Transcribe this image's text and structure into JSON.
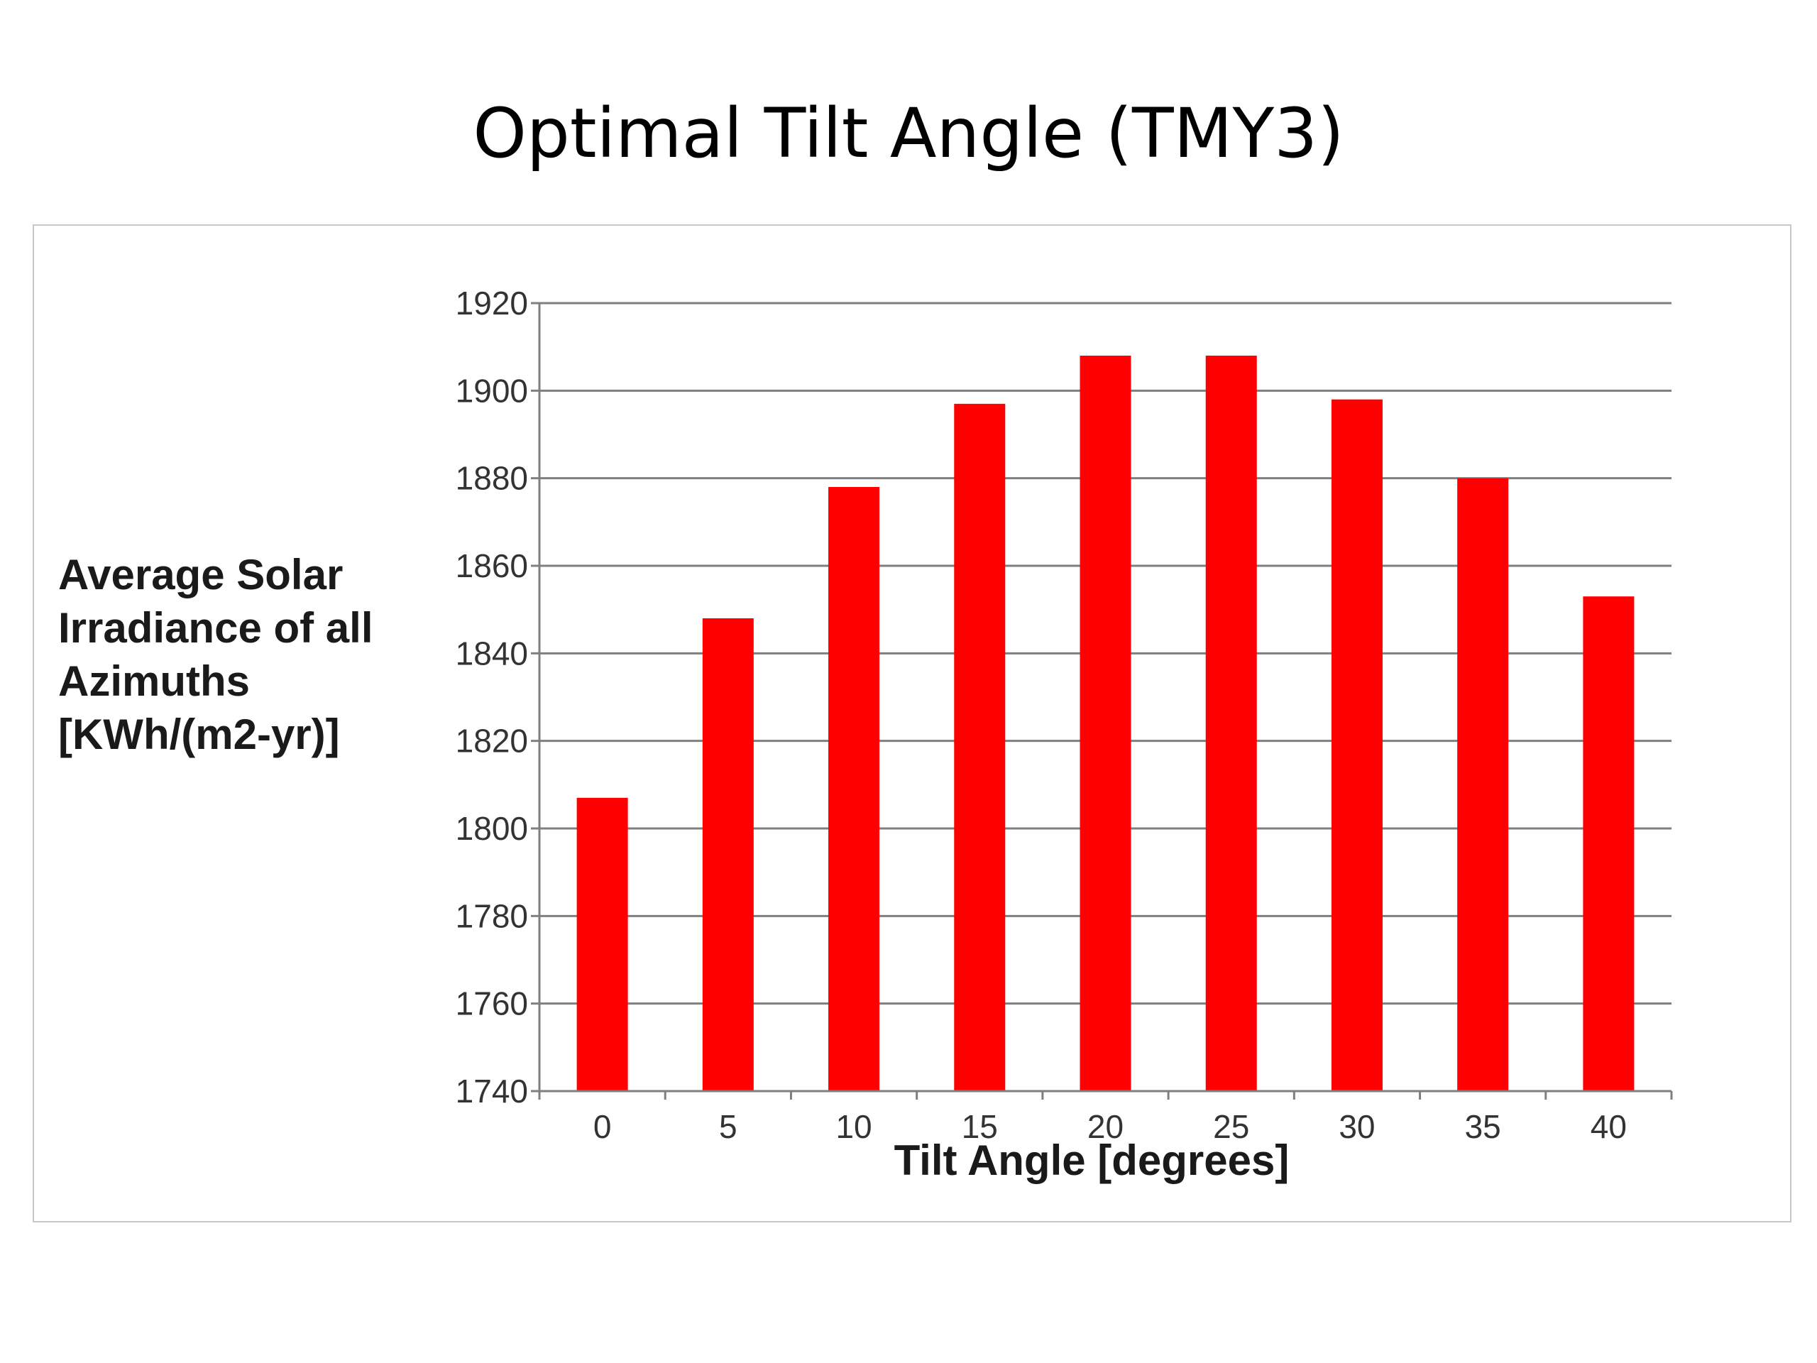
{
  "slide": {
    "title": "Optimal Tilt Angle (TMY3)"
  },
  "colors": {
    "bar": "#ff0000",
    "grid": "#7f7f7f",
    "axis": "#7f7f7f"
  },
  "chart_data": {
    "type": "bar",
    "title": "",
    "xlabel": "Tilt Angle [degrees]",
    "ylabel": "Average Solar Irradiance of all Azimuths [KWh/(m2-yr)]",
    "categories": [
      "0",
      "5",
      "10",
      "15",
      "20",
      "25",
      "30",
      "35",
      "40"
    ],
    "values": [
      1807,
      1848,
      1878,
      1897,
      1908,
      1908,
      1898,
      1880,
      1853
    ],
    "ylim": [
      1740,
      1920
    ],
    "yticks": [
      1740,
      1760,
      1780,
      1800,
      1820,
      1840,
      1860,
      1880,
      1900,
      1920
    ],
    "grid": true,
    "legend": "none"
  }
}
